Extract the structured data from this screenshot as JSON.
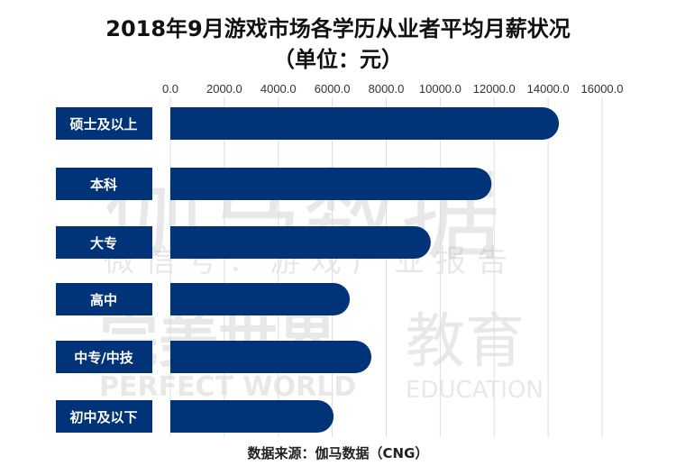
{
  "chart_data": {
    "type": "bar",
    "orientation": "horizontal",
    "title": "2018年9月游戏市场各学历从业者平均月薪状况",
    "subtitle": "（单位：元）",
    "categories": [
      "硕士及以上",
      "本科",
      "大专",
      "高中",
      "中专/中技",
      "初中及以下"
    ],
    "values": [
      14400,
      11900,
      9650,
      6650,
      7450,
      6050
    ],
    "xlim": [
      0,
      16000
    ],
    "ticks": [
      "0.0",
      "2000.0",
      "4000.0",
      "6000.0",
      "8000.0",
      "10000.0",
      "12000.0",
      "14000.0",
      "16000.0"
    ],
    "grid": true,
    "axis_position": "top",
    "bar_color": "#003377",
    "source": "数据来源：伽马数据（CNG）"
  },
  "watermarks": [
    "伽马数据",
    "微信号：游戏产业报告",
    "完美世界",
    "教育",
    "PERFECT WORLD",
    "EDUCATION"
  ]
}
